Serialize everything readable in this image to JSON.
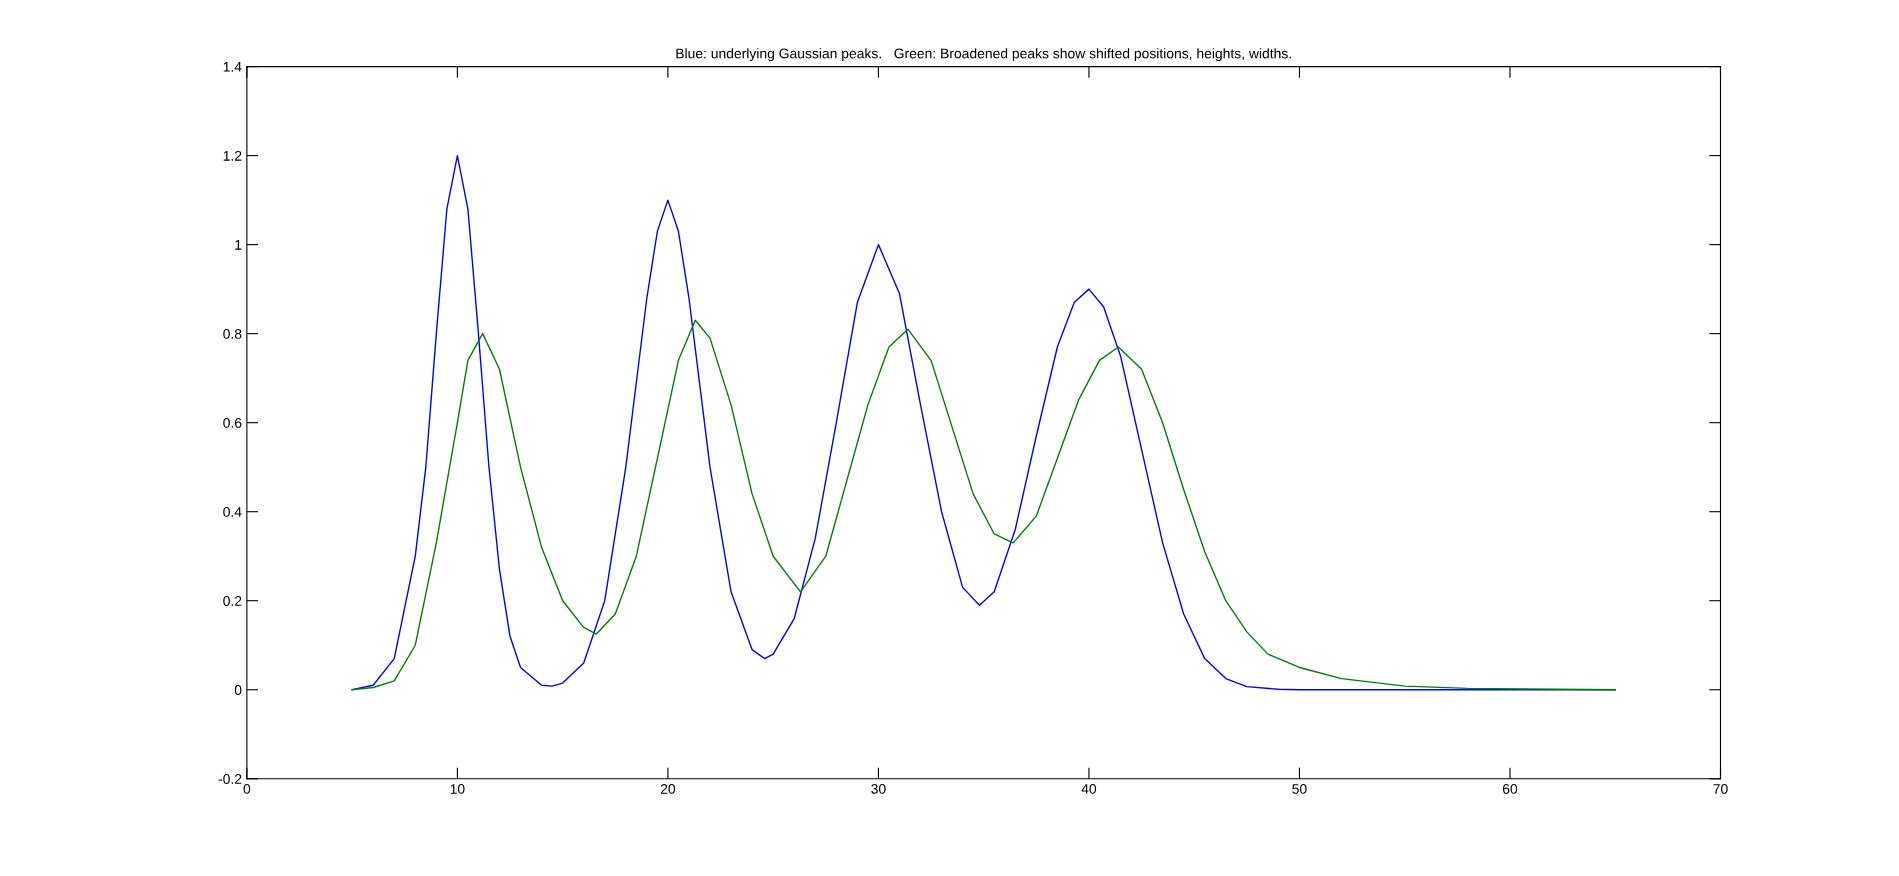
{
  "chart_data": {
    "type": "line",
    "title": "Blue: underlying Gaussian peaks.   Green: Broadened peaks show shifted positions, heights, widths.",
    "xlim": [
      0,
      70
    ],
    "xticks": [
      0,
      10,
      20,
      30,
      40,
      50,
      60,
      70
    ],
    "ylim": [
      -0.2,
      1.4
    ],
    "yticks": [
      -0.2,
      0,
      0.2,
      0.4,
      0.6,
      0.8,
      1,
      1.2,
      1.4
    ],
    "grid": false,
    "legend": false,
    "marker": "none",
    "line_style": "solid",
    "series": [
      {
        "color": "#0000ff",
        "x": [
          5,
          6,
          7,
          8,
          8.5,
          9,
          9.5,
          10,
          10.5,
          11,
          11.5,
          12,
          12.5,
          13,
          14,
          14.5,
          15,
          16,
          17,
          18,
          19,
          19.5,
          20,
          20.5,
          21,
          22,
          23,
          24,
          24.6,
          25,
          26,
          27,
          28,
          29,
          30,
          31,
          32,
          33,
          34,
          34.8,
          35.5,
          36.5,
          37.5,
          38.5,
          39.3,
          40,
          40.7,
          41.5,
          42.5,
          43.5,
          44.5,
          45.5,
          46.5,
          47.5,
          49,
          50,
          65
        ],
        "values": [
          0,
          0.01,
          0.07,
          0.3,
          0.5,
          0.8,
          1.08,
          1.2,
          1.08,
          0.8,
          0.5,
          0.27,
          0.12,
          0.05,
          0.01,
          0.008,
          0.015,
          0.06,
          0.2,
          0.5,
          0.88,
          1.03,
          1.1,
          1.03,
          0.88,
          0.5,
          0.22,
          0.09,
          0.07,
          0.08,
          0.16,
          0.34,
          0.6,
          0.87,
          1.0,
          0.89,
          0.64,
          0.4,
          0.23,
          0.19,
          0.22,
          0.36,
          0.57,
          0.77,
          0.87,
          0.9,
          0.86,
          0.75,
          0.54,
          0.33,
          0.17,
          0.07,
          0.025,
          0.007,
          0.001,
          0,
          0
        ]
      },
      {
        "color": "#008000",
        "x": [
          5,
          6,
          7,
          8,
          9,
          10,
          10.5,
          11.2,
          12,
          13,
          14,
          15,
          16,
          16.6,
          17.5,
          18.5,
          19.5,
          20.5,
          21.3,
          22,
          23,
          24,
          25,
          26.3,
          27.5,
          28.5,
          29.5,
          30.5,
          31.4,
          32.5,
          33.5,
          34.5,
          35.5,
          36.4,
          37.5,
          38.5,
          39.5,
          40.5,
          41.4,
          42.5,
          43.5,
          44.5,
          45.5,
          46.5,
          47.5,
          48.5,
          50,
          52,
          55,
          58,
          65
        ],
        "values": [
          0,
          0.005,
          0.02,
          0.1,
          0.33,
          0.6,
          0.74,
          0.8,
          0.72,
          0.5,
          0.32,
          0.2,
          0.14,
          0.125,
          0.17,
          0.3,
          0.52,
          0.74,
          0.83,
          0.79,
          0.64,
          0.44,
          0.3,
          0.22,
          0.3,
          0.47,
          0.64,
          0.77,
          0.81,
          0.74,
          0.59,
          0.44,
          0.35,
          0.33,
          0.39,
          0.52,
          0.65,
          0.74,
          0.77,
          0.72,
          0.6,
          0.45,
          0.31,
          0.2,
          0.13,
          0.08,
          0.05,
          0.025,
          0.008,
          0.003,
          0
        ]
      }
    ]
  }
}
